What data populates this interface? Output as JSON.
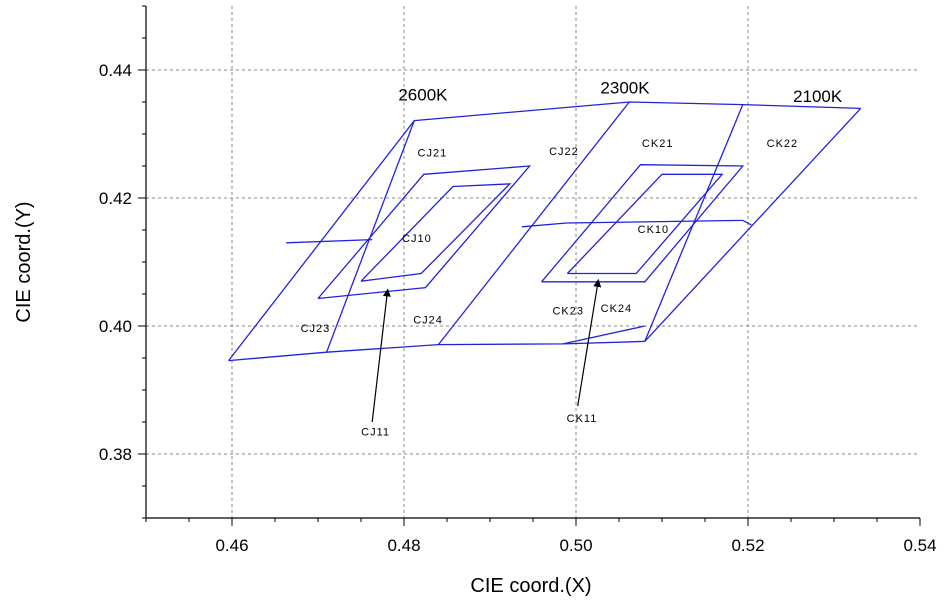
{
  "chart_data": {
    "type": "line",
    "xlabel": "CIE coord.(X)",
    "ylabel": "CIE coord.(Y)",
    "xlim": [
      0.45,
      0.54
    ],
    "ylim": [
      0.37,
      0.45
    ],
    "xticks": [
      "0.46",
      "0.48",
      "0.50",
      "0.52",
      "0.54"
    ],
    "yticks": [
      "0.38",
      "0.40",
      "0.42",
      "0.44"
    ],
    "grid": true,
    "line_color": "#2222dd",
    "temperature_labels": [
      {
        "text": "2600K",
        "x": 0.4822,
        "y": 0.4352
      },
      {
        "text": "2300K",
        "x": 0.5057,
        "y": 0.4363
      },
      {
        "text": "2100K",
        "x": 0.5281,
        "y": 0.435
      }
    ],
    "region_labels": [
      {
        "text": "CJ21",
        "x": 0.4833,
        "y": 0.4265
      },
      {
        "text": "CJ22",
        "x": 0.4986,
        "y": 0.4267
      },
      {
        "text": "CK21",
        "x": 0.5095,
        "y": 0.428
      },
      {
        "text": "CK22",
        "x": 0.524,
        "y": 0.428
      },
      {
        "text": "CJ10",
        "x": 0.4815,
        "y": 0.4131
      },
      {
        "text": "CK10",
        "x": 0.509,
        "y": 0.4145
      },
      {
        "text": "CJ23",
        "x": 0.4697,
        "y": 0.3991
      },
      {
        "text": "CJ24",
        "x": 0.4828,
        "y": 0.4004
      },
      {
        "text": "CK23",
        "x": 0.4991,
        "y": 0.4018
      },
      {
        "text": "CK24",
        "x": 0.5047,
        "y": 0.4022
      },
      {
        "text": "CJ11",
        "x": 0.4767,
        "y": 0.3829
      },
      {
        "text": "CK11",
        "x": 0.5007,
        "y": 0.385
      }
    ],
    "polylines": [
      [
        [
          0.4596,
          0.3946
        ],
        [
          0.4812,
          0.4321
        ],
        [
          0.5062,
          0.435
        ],
        [
          0.5194,
          0.4346
        ],
        [
          0.5331,
          0.434
        ]
      ],
      [
        [
          0.4596,
          0.3946
        ],
        [
          0.471,
          0.3959
        ],
        [
          0.484,
          0.3971
        ],
        [
          0.4985,
          0.3972
        ],
        [
          0.508,
          0.3976
        ]
      ],
      [
        [
          0.5194,
          0.4346
        ],
        [
          0.508,
          0.3976
        ]
      ],
      [
        [
          0.5331,
          0.434
        ],
        [
          0.508,
          0.3976
        ]
      ],
      [
        [
          0.5062,
          0.435
        ],
        [
          0.484,
          0.3971
        ]
      ],
      [
        [
          0.4812,
          0.4321
        ],
        [
          0.471,
          0.3959
        ]
      ],
      [
        [
          0.4985,
          0.3972
        ],
        [
          0.508,
          0.4
        ]
      ],
      [
        [
          0.4663,
          0.413
        ],
        [
          0.4763,
          0.4135
        ]
      ],
      [
        [
          0.4937,
          0.4155
        ],
        [
          0.4989,
          0.4161
        ]
      ],
      [
        [
          0.4989,
          0.4161
        ],
        [
          0.5194,
          0.4165
        ]
      ],
      [
        [
          0.5194,
          0.4165
        ],
        [
          0.5204,
          0.4158
        ]
      ],
      [
        [
          0.47,
          0.4043
        ],
        [
          0.4825,
          0.406
        ],
        [
          0.4946,
          0.425
        ],
        [
          0.4823,
          0.4237
        ],
        [
          0.47,
          0.4043
        ]
      ],
      [
        [
          0.475,
          0.407
        ],
        [
          0.482,
          0.4082
        ],
        [
          0.4923,
          0.4222
        ],
        [
          0.4857,
          0.4218
        ],
        [
          0.475,
          0.407
        ]
      ],
      [
        [
          0.496,
          0.4069
        ],
        [
          0.508,
          0.4069
        ],
        [
          0.5194,
          0.425
        ],
        [
          0.5075,
          0.4252
        ],
        [
          0.496,
          0.4069
        ]
      ],
      [
        [
          0.499,
          0.4082
        ],
        [
          0.507,
          0.4082
        ],
        [
          0.517,
          0.4237
        ],
        [
          0.51,
          0.4237
        ],
        [
          0.499,
          0.4082
        ]
      ]
    ],
    "arrows": [
      {
        "label": "CJ11",
        "from": [
          0.4763,
          0.385
        ],
        "to": [
          0.4781,
          0.4057
        ]
      },
      {
        "label": "CK11",
        "from": [
          0.5002,
          0.3875
        ],
        "to": [
          0.5026,
          0.4072
        ]
      }
    ]
  }
}
